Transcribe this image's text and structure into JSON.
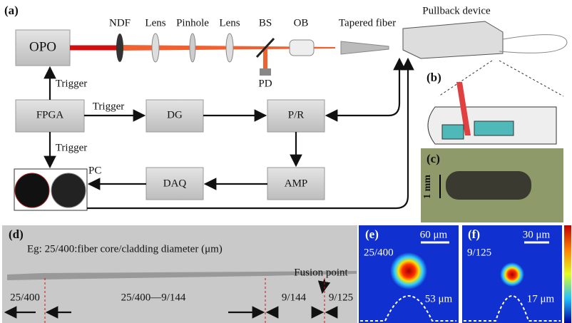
{
  "panel_a": {
    "label": "(a)",
    "blocks": {
      "opo": "OPO",
      "fpga": "FPGA",
      "dg": "DG",
      "pr": "P/R",
      "amp": "AMP",
      "daq": "DAQ",
      "pc": "PC"
    },
    "optics": {
      "ndf": "NDF",
      "lens1": "Lens",
      "pinhole": "Pinhole",
      "lens2": "Lens",
      "bs": "BS",
      "ob": "OB",
      "pd": "PD",
      "tapered_fiber": "Tapered fiber",
      "pullback": "Pullback device"
    },
    "triggers": [
      "Trigger",
      "Trigger",
      "Trigger"
    ]
  },
  "panel_b": {
    "label": "(b)"
  },
  "panel_c": {
    "label": "(c)",
    "scale": "1 mm"
  },
  "panel_d": {
    "label": "(d)",
    "note": "Eg: 25/400:fiber core/cladding diameter (μm)",
    "fusion": "Fusion point",
    "segments": [
      "25/400",
      "25/400—9/144",
      "9/144",
      "9/125"
    ]
  },
  "panel_e": {
    "label": "(e)",
    "scale": "60 μm",
    "fiber": "25/400",
    "width": "53 μm"
  },
  "panel_f": {
    "label": "(f)",
    "scale": "30 μm",
    "fiber": "9/125",
    "width": "17 μm"
  }
}
